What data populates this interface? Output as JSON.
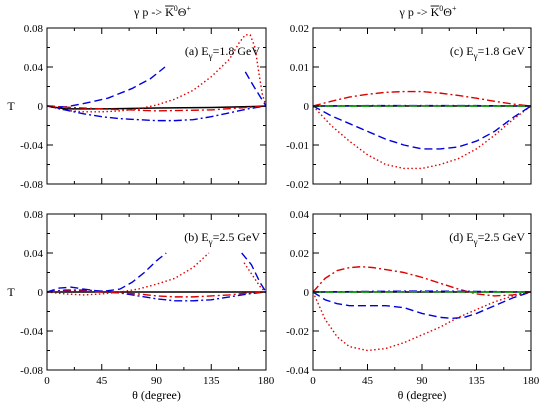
{
  "chart_data": [
    {
      "type": "line",
      "annotation": {
        "prefix": "(a) E",
        "sub": "γ",
        "suffix": "=1.8 GeV"
      },
      "ylabel": "T",
      "xlabel": "",
      "title": {
        "main": "γ p -> K",
        "sup1": "0",
        "theta": "Θ",
        "sup2": "+"
      },
      "xlim": [
        0,
        180
      ],
      "ylim": [
        -0.08,
        0.08
      ],
      "xticks": [
        0,
        45,
        90,
        135,
        180
      ],
      "yticks": [
        -0.08,
        -0.04,
        0,
        0.04,
        0.08
      ],
      "yticklabels": [
        "-0.08",
        "-0.04",
        "0",
        "0.04",
        "0.08"
      ],
      "show_xticklabels": false,
      "series": [
        {
          "style": "solid",
          "color": "#000000",
          "x": [
            0,
            15,
            45,
            90,
            135,
            170,
            180
          ],
          "y": [
            0,
            -0.003,
            -0.003,
            -0.002,
            -0.0015,
            -0.0005,
            0
          ]
        },
        {
          "style": "dashed",
          "color": "#0000dd",
          "x": [
            0,
            15,
            30,
            50,
            70,
            85,
            97
          ],
          "y": [
            0,
            -0.001,
            0.0025,
            0.008,
            0.018,
            0.028,
            0.04
          ]
        },
        {
          "style": "dashed",
          "color": "#0000dd",
          "x": [
            163,
            170,
            176,
            180
          ],
          "y": [
            0.035,
            0.02,
            0.008,
            0
          ]
        },
        {
          "style": "dotted",
          "color": "#dd0000",
          "x": [
            0,
            10,
            20,
            30,
            45,
            60,
            75,
            90,
            105,
            120,
            135,
            150,
            158,
            163,
            167,
            171,
            174,
            177,
            180
          ],
          "y": [
            0,
            -0.003,
            -0.005,
            -0.006,
            -0.006,
            -0.005,
            -0.003,
            0.001,
            0.007,
            0.016,
            0.03,
            0.048,
            0.065,
            0.073,
            0.073,
            0.06,
            0.035,
            0.012,
            0
          ]
        },
        {
          "style": "dashdot",
          "color": "#0000dd",
          "x": [
            0,
            15,
            30,
            45,
            60,
            75,
            90,
            105,
            120,
            135,
            150,
            165,
            175,
            180
          ],
          "y": [
            0,
            -0.004,
            -0.008,
            -0.011,
            -0.013,
            -0.014,
            -0.015,
            -0.015,
            -0.014,
            -0.011,
            -0.007,
            -0.003,
            -0.001,
            0
          ]
        },
        {
          "style": "dashdot",
          "color": "#dd0000",
          "x": [
            0,
            20,
            45,
            90,
            135,
            170,
            180
          ],
          "y": [
            0,
            -0.0015,
            -0.003,
            -0.005,
            -0.004,
            -0.001,
            0
          ]
        }
      ]
    },
    {
      "type": "line",
      "annotation": {
        "prefix": "(c) E",
        "sub": "γ",
        "suffix": "=1.8 GeV"
      },
      "ylabel": "",
      "xlabel": "",
      "title": {
        "main": "γ p -> K",
        "sup1": "0",
        "theta": "Θ",
        "sup2": "+"
      },
      "xlim": [
        0,
        180
      ],
      "ylim": [
        -0.02,
        0.02
      ],
      "xticks": [
        0,
        45,
        90,
        135,
        180
      ],
      "yticks": [
        -0.02,
        -0.01,
        0,
        0.01,
        0.02
      ],
      "yticklabels": [
        "-0.02",
        "-0.01",
        "0",
        "0.01",
        "0.02"
      ],
      "show_xticklabels": false,
      "series": [
        {
          "style": "solid",
          "color": "#000000",
          "x": [
            0,
            180
          ],
          "y": [
            0,
            0
          ]
        },
        {
          "style": "dotted",
          "color": "#dd0000",
          "x": [
            0,
            15,
            30,
            45,
            60,
            75,
            90,
            105,
            120,
            135,
            150,
            165,
            180
          ],
          "y": [
            0,
            -0.005,
            -0.009,
            -0.0125,
            -0.015,
            -0.016,
            -0.016,
            -0.015,
            -0.0135,
            -0.011,
            -0.0075,
            -0.0035,
            0
          ]
        },
        {
          "style": "dashed",
          "color": "#0000dd",
          "x": [
            0,
            15,
            30,
            45,
            60,
            75,
            90,
            105,
            120,
            135,
            150,
            165,
            180
          ],
          "y": [
            0,
            -0.0025,
            -0.0045,
            -0.0065,
            -0.0085,
            -0.01,
            -0.011,
            -0.011,
            -0.0105,
            -0.009,
            -0.0065,
            -0.003,
            0
          ]
        },
        {
          "style": "dashdot",
          "color": "#dd0000",
          "x": [
            0,
            15,
            30,
            45,
            60,
            75,
            90,
            105,
            120,
            135,
            150,
            165,
            180
          ],
          "y": [
            0,
            0.0012,
            0.0023,
            0.003,
            0.0035,
            0.0037,
            0.0037,
            0.0033,
            0.0027,
            0.002,
            0.0012,
            0.0005,
            0
          ]
        },
        {
          "style": "dashdot",
          "color": "#0000dd",
          "x": [
            0,
            45,
            90,
            135,
            180
          ],
          "y": [
            0,
            0.0001,
            0.0001,
            0.0001,
            0
          ]
        },
        {
          "style": "dashed",
          "color": "#00aa00",
          "x": [
            0,
            45,
            90,
            135,
            180
          ],
          "y": [
            0,
            0,
            5e-05,
            0,
            0
          ]
        }
      ]
    },
    {
      "type": "line",
      "annotation": {
        "prefix": "(b) E",
        "sub": "γ",
        "suffix": "=2.5 GeV"
      },
      "ylabel": "T",
      "xlabel": "θ  (degree)",
      "title": null,
      "xlim": [
        0,
        180
      ],
      "ylim": [
        -0.08,
        0.08
      ],
      "xticks": [
        0,
        45,
        90,
        135,
        180
      ],
      "yticks": [
        -0.08,
        -0.04,
        0,
        0.04,
        0.08
      ],
      "yticklabels": [
        "-0.08",
        "-0.04",
        "0",
        "0.04",
        "0.08"
      ],
      "xticklabels": [
        "0",
        "45",
        "90",
        "135",
        "180"
      ],
      "show_xticklabels": true,
      "series": [
        {
          "style": "solid",
          "color": "#000000",
          "x": [
            0,
            180
          ],
          "y": [
            0,
            0
          ]
        },
        {
          "style": "dashed",
          "color": "#0000dd",
          "x": [
            0,
            10,
            20,
            30,
            45,
            60,
            70,
            80,
            90,
            98
          ],
          "y": [
            0,
            0.004,
            0.005,
            0.003,
            0.0005,
            0.003,
            0.01,
            0.02,
            0.032,
            0.04
          ]
        },
        {
          "style": "dashed",
          "color": "#0000dd",
          "x": [
            160,
            168,
            175,
            180
          ],
          "y": [
            0.04,
            0.028,
            0.01,
            0
          ]
        },
        {
          "style": "dotted",
          "color": "#dd0000",
          "x": [
            0,
            15,
            30,
            45,
            60,
            75,
            90,
            105,
            120,
            133
          ],
          "y": [
            0,
            -0.002,
            -0.003,
            -0.002,
            0,
            0.003,
            0.008,
            0.014,
            0.025,
            0.04
          ]
        },
        {
          "style": "dotted",
          "color": "#dd0000",
          "x": [
            162,
            170,
            176,
            180
          ],
          "y": [
            0.03,
            0.015,
            0.004,
            0
          ]
        },
        {
          "style": "dashdot",
          "color": "#0000dd",
          "x": [
            0,
            15,
            30,
            45,
            60,
            75,
            90,
            105,
            120,
            135,
            150,
            165,
            180
          ],
          "y": [
            0,
            0.002,
            0.002,
            0.001,
            -0.001,
            -0.004,
            -0.007,
            -0.009,
            -0.009,
            -0.008,
            -0.005,
            -0.002,
            0
          ]
        },
        {
          "style": "dashdot",
          "color": "#dd0000",
          "x": [
            0,
            15,
            30,
            45,
            60,
            75,
            90,
            105,
            120,
            135,
            150,
            165,
            180
          ],
          "y": [
            0,
            0.001,
            0.001,
            0,
            -0.001,
            -0.002,
            -0.004,
            -0.005,
            -0.005,
            -0.004,
            -0.003,
            -0.001,
            0
          ]
        }
      ]
    },
    {
      "type": "line",
      "annotation": {
        "prefix": "(d) E",
        "sub": "γ",
        "suffix": "=2.5 GeV"
      },
      "ylabel": "",
      "xlabel": "θ  (degree)",
      "title": null,
      "xlim": [
        0,
        180
      ],
      "ylim": [
        -0.04,
        0.04
      ],
      "xticks": [
        0,
        45,
        90,
        135,
        180
      ],
      "yticks": [
        -0.04,
        -0.02,
        0,
        0.02,
        0.04
      ],
      "yticklabels": [
        "-0.04",
        "-0.02",
        "0",
        "0.02",
        "0.04"
      ],
      "xticklabels": [
        "0",
        "45",
        "90",
        "135",
        "180"
      ],
      "show_xticklabels": true,
      "series": [
        {
          "style": "solid",
          "color": "#000000",
          "x": [
            0,
            180
          ],
          "y": [
            0,
            0
          ]
        },
        {
          "style": "dotted",
          "color": "#dd0000",
          "x": [
            0,
            10,
            20,
            30,
            45,
            60,
            75,
            90,
            105,
            120,
            135,
            150,
            165,
            180
          ],
          "y": [
            0,
            -0.014,
            -0.023,
            -0.028,
            -0.03,
            -0.029,
            -0.026,
            -0.022,
            -0.018,
            -0.013,
            -0.009,
            -0.005,
            -0.002,
            0
          ]
        },
        {
          "style": "dashed",
          "color": "#0000dd",
          "x": [
            0,
            10,
            20,
            30,
            45,
            60,
            75,
            90,
            105,
            115,
            125,
            135,
            150,
            165,
            180
          ],
          "y": [
            0,
            -0.004,
            -0.006,
            -0.007,
            -0.007,
            -0.007,
            -0.008,
            -0.011,
            -0.013,
            -0.0135,
            -0.013,
            -0.011,
            -0.007,
            -0.003,
            0
          ]
        },
        {
          "style": "dashdot",
          "color": "#dd0000",
          "x": [
            0,
            10,
            20,
            30,
            40,
            50,
            60,
            75,
            90,
            105,
            120,
            135,
            150,
            165,
            180
          ],
          "y": [
            0,
            0.007,
            0.011,
            0.0125,
            0.013,
            0.0125,
            0.0115,
            0.01,
            0.0075,
            0.0045,
            0.0015,
            -0.001,
            -0.002,
            -0.0015,
            0
          ]
        },
        {
          "style": "dashdot",
          "color": "#0000dd",
          "x": [
            0,
            45,
            90,
            135,
            180
          ],
          "y": [
            0,
            0.0003,
            0.0005,
            0.0003,
            0
          ]
        },
        {
          "style": "dashed",
          "color": "#00aa00",
          "x": [
            0,
            45,
            90,
            135,
            180
          ],
          "y": [
            0,
            0,
            0.0002,
            0,
            0
          ]
        }
      ]
    }
  ]
}
